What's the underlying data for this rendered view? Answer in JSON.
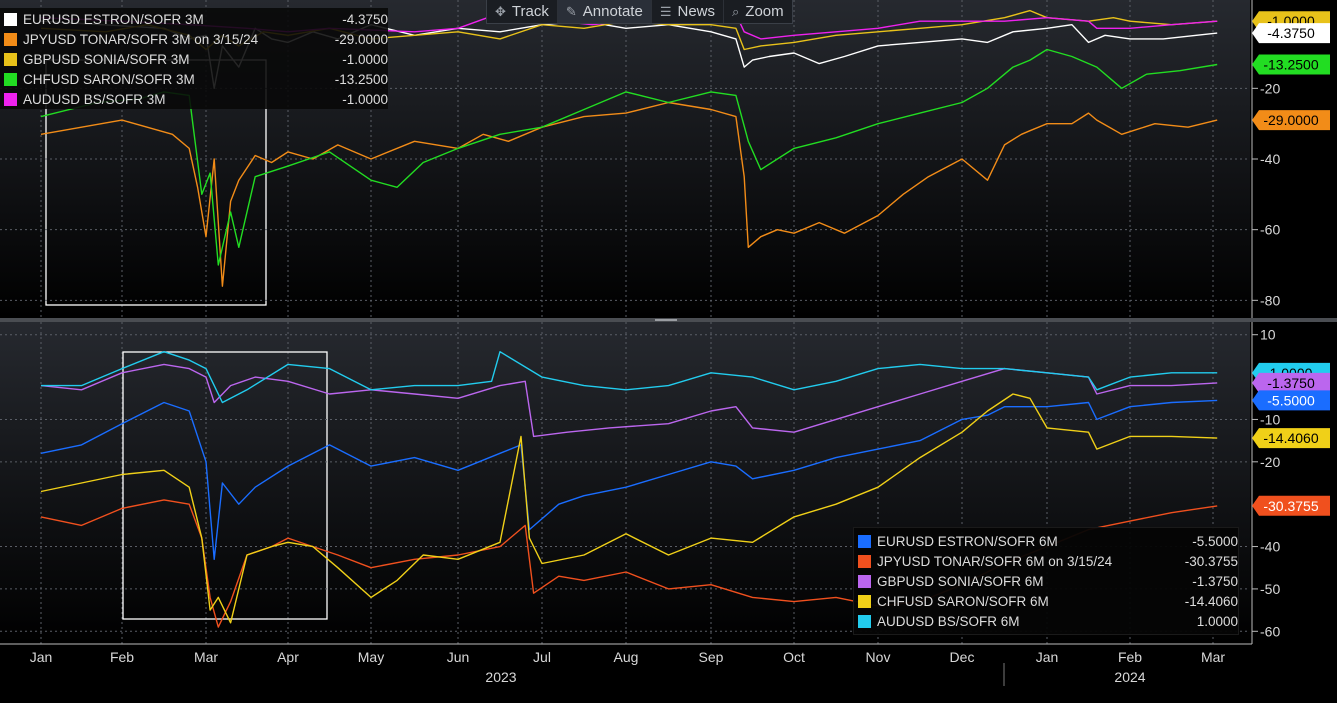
{
  "toolbar": {
    "items": [
      {
        "label": "Track",
        "icon": "crosshair-icon"
      },
      {
        "label": "Annotate",
        "icon": "pencil-icon"
      },
      {
        "label": "News",
        "icon": "news-icon"
      },
      {
        "label": "Zoom",
        "icon": "magnifier-icon"
      }
    ]
  },
  "x_axis": {
    "month_labels": [
      "Jan",
      "Feb",
      "Mar",
      "Apr",
      "May",
      "Jun",
      "Jul",
      "Aug",
      "Sep",
      "Oct",
      "Nov",
      "Dec",
      "Jan",
      "Feb",
      "Mar"
    ],
    "year_labels": [
      "2023",
      "2024"
    ]
  },
  "chart_data": [
    {
      "type": "line",
      "panel": "top",
      "ylim": [
        -85,
        5
      ],
      "y_ticks": [
        -20,
        -40,
        -60,
        -80
      ],
      "legend": [
        {
          "name": "EURUSD ESTRON/SOFR 3M",
          "value": "-4.3750",
          "color": "#ffffff"
        },
        {
          "name": "JPYUSD TONAR/SOFR 3M on 3/15/24",
          "value": "-29.0000",
          "color": "#f28c18"
        },
        {
          "name": "GBPUSD SONIA/SOFR 3M",
          "value": "-1.0000",
          "color": "#e8c21a"
        },
        {
          "name": "CHFUSD SARON/SOFR 3M",
          "value": "-13.2500",
          "color": "#22dd22"
        },
        {
          "name": "AUDUSD BS/SOFR 3M",
          "value": "-1.0000",
          "color": "#ee22ee"
        }
      ],
      "value_tags": [
        {
          "label": "-1.0000",
          "value": -1.0,
          "color": "#e8c21a"
        },
        {
          "label": "-4.3750",
          "value": -4.375,
          "color": "#ffffff"
        },
        {
          "label": "-13.2500",
          "value": -13.25,
          "color": "#22dd22"
        },
        {
          "label": "-29.0000",
          "value": -29.0,
          "color": "#f28c18"
        }
      ],
      "series": [
        {
          "name": "EURUSD ESTRON/SOFR 3M",
          "color": "#ffffff",
          "x": [
            0.0,
            1.5,
            1.8,
            2.0,
            2.1,
            2.2,
            2.4,
            2.6,
            2.8,
            3.0,
            3.3,
            3.6,
            4.0,
            4.5,
            5.0,
            5.5,
            6.0,
            6.5,
            7.0,
            7.5,
            8.0,
            8.3,
            8.4,
            8.5,
            8.7,
            9.0,
            9.3,
            9.6,
            10.0,
            10.5,
            11.0,
            11.3,
            11.6,
            12.0,
            12.3,
            12.5,
            12.7,
            13.0,
            13.4,
            13.8,
            14.05
          ],
          "y": [
            -1,
            -3,
            -6,
            -5,
            -20,
            -8,
            -14,
            -3,
            -6,
            -7,
            -4,
            -6,
            -2,
            -5,
            -3,
            -4,
            -2,
            -1,
            -3,
            -2,
            -4,
            -6,
            -14,
            -12,
            -11,
            -10,
            -13,
            -11,
            -8,
            -7,
            -6,
            -7,
            -4,
            -3,
            -2,
            -7,
            -5,
            -6,
            -6,
            -5,
            -4.375
          ]
        },
        {
          "name": "JPYUSD TONAR/SOFR 3M on 3/15/24",
          "color": "#f28c18",
          "x": [
            0.0,
            0.5,
            1.0,
            1.3,
            1.6,
            1.8,
            1.9,
            2.0,
            2.1,
            2.2,
            2.3,
            2.4,
            2.6,
            2.8,
            3.0,
            3.3,
            3.6,
            4.0,
            4.5,
            5.0,
            5.3,
            5.6,
            6.0,
            6.5,
            7.0,
            7.5,
            8.0,
            8.3,
            8.4,
            8.45,
            8.6,
            8.8,
            9.0,
            9.3,
            9.6,
            10.0,
            10.3,
            10.6,
            11.0,
            11.3,
            11.5,
            11.7,
            11.8,
            12.0,
            12.3,
            12.5,
            12.6,
            12.9,
            13.3,
            13.7,
            14.05
          ],
          "y": [
            -33,
            -31,
            -29,
            -31,
            -33,
            -37,
            -48,
            -62,
            -40,
            -76,
            -52,
            -46,
            -39,
            -41,
            -38,
            -40,
            -36,
            -40,
            -35,
            -37,
            -33,
            -35,
            -31,
            -28,
            -27,
            -24,
            -26,
            -28,
            -45,
            -65,
            -62,
            -60,
            -61,
            -58,
            -61,
            -56,
            -50,
            -45,
            -40,
            -46,
            -36,
            -33,
            -32,
            -30,
            -30,
            -27,
            -29,
            -33,
            -30,
            -31,
            -29
          ]
        },
        {
          "name": "GBPUSD SONIA/SOFR 3M",
          "color": "#e8c21a",
          "x": [
            0.0,
            0.8,
            1.3,
            1.8,
            2.0,
            2.2,
            2.4,
            2.7,
            3.0,
            3.5,
            4.0,
            4.5,
            5.0,
            5.5,
            6.0,
            6.5,
            7.0,
            7.5,
            8.0,
            8.3,
            8.4,
            8.6,
            9.0,
            9.5,
            10.0,
            10.5,
            11.0,
            11.5,
            11.8,
            12.0,
            12.5,
            12.8,
            13.0,
            13.5,
            14.05
          ],
          "y": [
            -3,
            -4,
            -2,
            -5,
            -9,
            -5,
            -8,
            -4,
            -5,
            -3,
            -6,
            -5,
            -4,
            -6,
            -2,
            -3,
            -1,
            -2,
            -2,
            -3,
            -9,
            -8,
            -7,
            -5,
            -4,
            -3,
            -2,
            0,
            2,
            0,
            -1,
            0,
            -1,
            -2,
            -1
          ]
        },
        {
          "name": "CHFUSD SARON/SOFR 3M",
          "color": "#22dd22",
          "x": [
            0.0,
            0.7,
            1.2,
            1.5,
            1.8,
            1.95,
            2.05,
            2.15,
            2.3,
            2.4,
            2.6,
            3.0,
            3.5,
            4.0,
            4.3,
            4.6,
            5.0,
            5.5,
            6.0,
            6.5,
            7.0,
            7.5,
            8.0,
            8.3,
            8.45,
            8.6,
            9.0,
            9.5,
            10.0,
            10.5,
            11.0,
            11.3,
            11.6,
            11.8,
            12.0,
            12.3,
            12.6,
            12.9,
            13.2,
            13.6,
            14.05
          ],
          "y": [
            -28,
            -24,
            -23,
            -21,
            -22,
            -50,
            -44,
            -70,
            -55,
            -65,
            -45,
            -42,
            -38,
            -46,
            -48,
            -41,
            -37,
            -33,
            -31,
            -26,
            -21,
            -24,
            -21,
            -22,
            -35,
            -43,
            -37,
            -34,
            -30,
            -27,
            -24,
            -20,
            -14,
            -12,
            -9,
            -11,
            -14,
            -20,
            -16,
            -15,
            -13.25
          ]
        },
        {
          "name": "AUDUSD BS/SOFR 3M",
          "color": "#ee22ee",
          "x": [
            0.0,
            1.0,
            1.8,
            2.5,
            3.0,
            3.5,
            4.5,
            5.0,
            5.35,
            5.45,
            5.8,
            6.2,
            6.6,
            7.0,
            7.5,
            8.0,
            8.3,
            8.4,
            8.6,
            9.0,
            9.5,
            10.0,
            10.5,
            11.0,
            11.5,
            12.0,
            12.5,
            12.6,
            13.0,
            13.5,
            14.05
          ],
          "y": [
            0,
            -1,
            -2,
            -3,
            -4,
            -3,
            -4,
            -3,
            0,
            8,
            2,
            -1,
            -2,
            -1,
            1,
            2,
            1,
            -4,
            -6,
            -5,
            -4,
            -3,
            -1,
            -1,
            -1,
            0,
            -1,
            -3,
            -3,
            -2,
            -1
          ]
        }
      ]
    },
    {
      "type": "line",
      "panel": "bottom",
      "ylim": [
        -63,
        13
      ],
      "y_ticks": [
        10,
        -10,
        -20,
        -40,
        -50,
        -60
      ],
      "legend": [
        {
          "name": "EURUSD ESTRON/SOFR 6M",
          "value": "-5.5000",
          "color": "#1a6dff"
        },
        {
          "name": "JPYUSD TONAR/SOFR 6M on 3/15/24",
          "value": "-30.3755",
          "color": "#f0501e"
        },
        {
          "name": "GBPUSD SONIA/SOFR 6M",
          "value": "-1.3750",
          "color": "#bb66ee"
        },
        {
          "name": "CHFUSD SARON/SOFR 6M",
          "value": "-14.4060",
          "color": "#f0d018"
        },
        {
          "name": "AUDUSD BS/SOFR 6M",
          "value": "1.0000",
          "color": "#22ccee"
        }
      ],
      "value_tags": [
        {
          "label": "1.0000",
          "value": 1.0,
          "color": "#22ccee"
        },
        {
          "label": "-1.3750",
          "value": -1.375,
          "color": "#bb66ee"
        },
        {
          "label": "-5.5000",
          "value": -5.5,
          "color": "#1a6dff"
        },
        {
          "label": "-14.4060",
          "value": -14.406,
          "color": "#f0d018"
        },
        {
          "label": "-30.3755",
          "value": -30.3755,
          "color": "#f0501e"
        }
      ],
      "series": [
        {
          "name": "EURUSD ESTRON/SOFR 6M",
          "color": "#1a6dff",
          "x": [
            0.0,
            0.5,
            1.0,
            1.5,
            1.8,
            2.0,
            2.1,
            2.2,
            2.4,
            2.6,
            3.0,
            3.5,
            4.0,
            4.5,
            5.0,
            5.5,
            5.75,
            5.85,
            6.2,
            6.5,
            7.0,
            7.5,
            8.0,
            8.3,
            8.5,
            9.0,
            9.5,
            10.0,
            10.5,
            11.0,
            11.3,
            11.5,
            12.0,
            12.5,
            12.6,
            13.0,
            13.5,
            14.05
          ],
          "y": [
            -18,
            -16,
            -11,
            -6,
            -8,
            -20,
            -43,
            -25,
            -30,
            -26,
            -21,
            -16,
            -21,
            -19,
            -22,
            -18,
            -16,
            -36,
            -30,
            -28,
            -26,
            -23,
            -20,
            -21,
            -24,
            -22,
            -19,
            -17,
            -15,
            -10,
            -9,
            -7,
            -7,
            -6,
            -10,
            -7,
            -6,
            -5.5
          ]
        },
        {
          "name": "JPYUSD TONAR/SOFR 6M on 3/15/24",
          "color": "#f0501e",
          "x": [
            0.0,
            0.5,
            1.0,
            1.5,
            1.8,
            1.95,
            2.05,
            2.15,
            2.3,
            2.5,
            2.8,
            3.0,
            3.3,
            3.6,
            4.0,
            4.5,
            5.0,
            5.5,
            5.8,
            5.9,
            6.2,
            6.5,
            7.0,
            7.5,
            8.0,
            8.5,
            9.0,
            9.5,
            10.0,
            10.5,
            11.0,
            11.5,
            12.0,
            12.5,
            13.0,
            13.5,
            14.05
          ],
          "y": [
            -33,
            -35,
            -31,
            -29,
            -30,
            -38,
            -52,
            -59,
            -53,
            -42,
            -40,
            -38,
            -40,
            -42,
            -45,
            -43,
            -42,
            -40,
            -35,
            -51,
            -47,
            -48,
            -46,
            -50,
            -49,
            -52,
            -53,
            -52,
            -54,
            -53,
            -49,
            -44,
            -40,
            -36,
            -34,
            -32,
            -30.4
          ]
        },
        {
          "name": "GBPUSD SONIA/SOFR 6M",
          "color": "#bb66ee",
          "x": [
            0.0,
            0.5,
            1.0,
            1.5,
            1.8,
            2.0,
            2.1,
            2.3,
            2.6,
            3.0,
            3.5,
            4.0,
            4.5,
            5.0,
            5.5,
            5.8,
            5.9,
            6.3,
            6.8,
            7.5,
            8.0,
            8.3,
            8.5,
            9.0,
            9.5,
            10.0,
            10.5,
            11.0,
            11.5,
            12.0,
            12.5,
            12.6,
            13.0,
            13.5,
            14.05
          ],
          "y": [
            -2,
            -3,
            1,
            3,
            2,
            0,
            -6,
            -2,
            0,
            -1,
            -4,
            -3,
            -4,
            -5,
            -2,
            -1,
            -14,
            -13,
            -12,
            -11,
            -8,
            -7,
            -12,
            -13,
            -10,
            -7,
            -4,
            -1,
            2,
            1,
            0,
            -4,
            -2,
            -2,
            -1.375
          ]
        },
        {
          "name": "CHFUSD SARON/SOFR 6M",
          "color": "#f0d018",
          "x": [
            0.0,
            0.5,
            1.0,
            1.5,
            1.8,
            1.95,
            2.05,
            2.15,
            2.3,
            2.5,
            2.8,
            3.0,
            3.3,
            3.6,
            4.0,
            4.3,
            4.6,
            5.0,
            5.5,
            5.65,
            5.75,
            5.85,
            6.0,
            6.5,
            7.0,
            7.5,
            8.0,
            8.5,
            9.0,
            9.5,
            10.0,
            10.5,
            11.0,
            11.3,
            11.6,
            11.8,
            12.0,
            12.5,
            12.6,
            13.0,
            13.5,
            14.05
          ],
          "y": [
            -27,
            -25,
            -23,
            -22,
            -26,
            -38,
            -55,
            -52,
            -58,
            -42,
            -40,
            -39,
            -40,
            -45,
            -52,
            -48,
            -42,
            -43,
            -39,
            -24,
            -14,
            -38,
            -44,
            -42,
            -37,
            -42,
            -38,
            -39,
            -33,
            -30,
            -26,
            -19,
            -13,
            -8,
            -4,
            -5,
            -12,
            -13,
            -17,
            -14,
            -14,
            -14.4
          ]
        },
        {
          "name": "AUDUSD BS/SOFR 6M",
          "color": "#22ccee",
          "x": [
            0.0,
            0.5,
            1.0,
            1.5,
            1.8,
            2.0,
            2.2,
            2.5,
            3.0,
            3.5,
            4.0,
            4.5,
            5.0,
            5.4,
            5.5,
            6.0,
            6.5,
            7.0,
            7.5,
            8.0,
            8.5,
            9.0,
            9.5,
            10.0,
            10.5,
            11.0,
            11.5,
            12.0,
            12.5,
            12.6,
            13.0,
            13.5,
            14.05
          ],
          "y": [
            -2,
            -2,
            2,
            6,
            4,
            2,
            -6,
            -3,
            3,
            2,
            -3,
            -2,
            -2,
            -1,
            6,
            0,
            -2,
            -3,
            -2,
            1,
            0,
            -3,
            -1,
            2,
            3,
            2,
            2,
            1,
            0,
            -3,
            0,
            1,
            1.0
          ]
        }
      ]
    }
  ]
}
